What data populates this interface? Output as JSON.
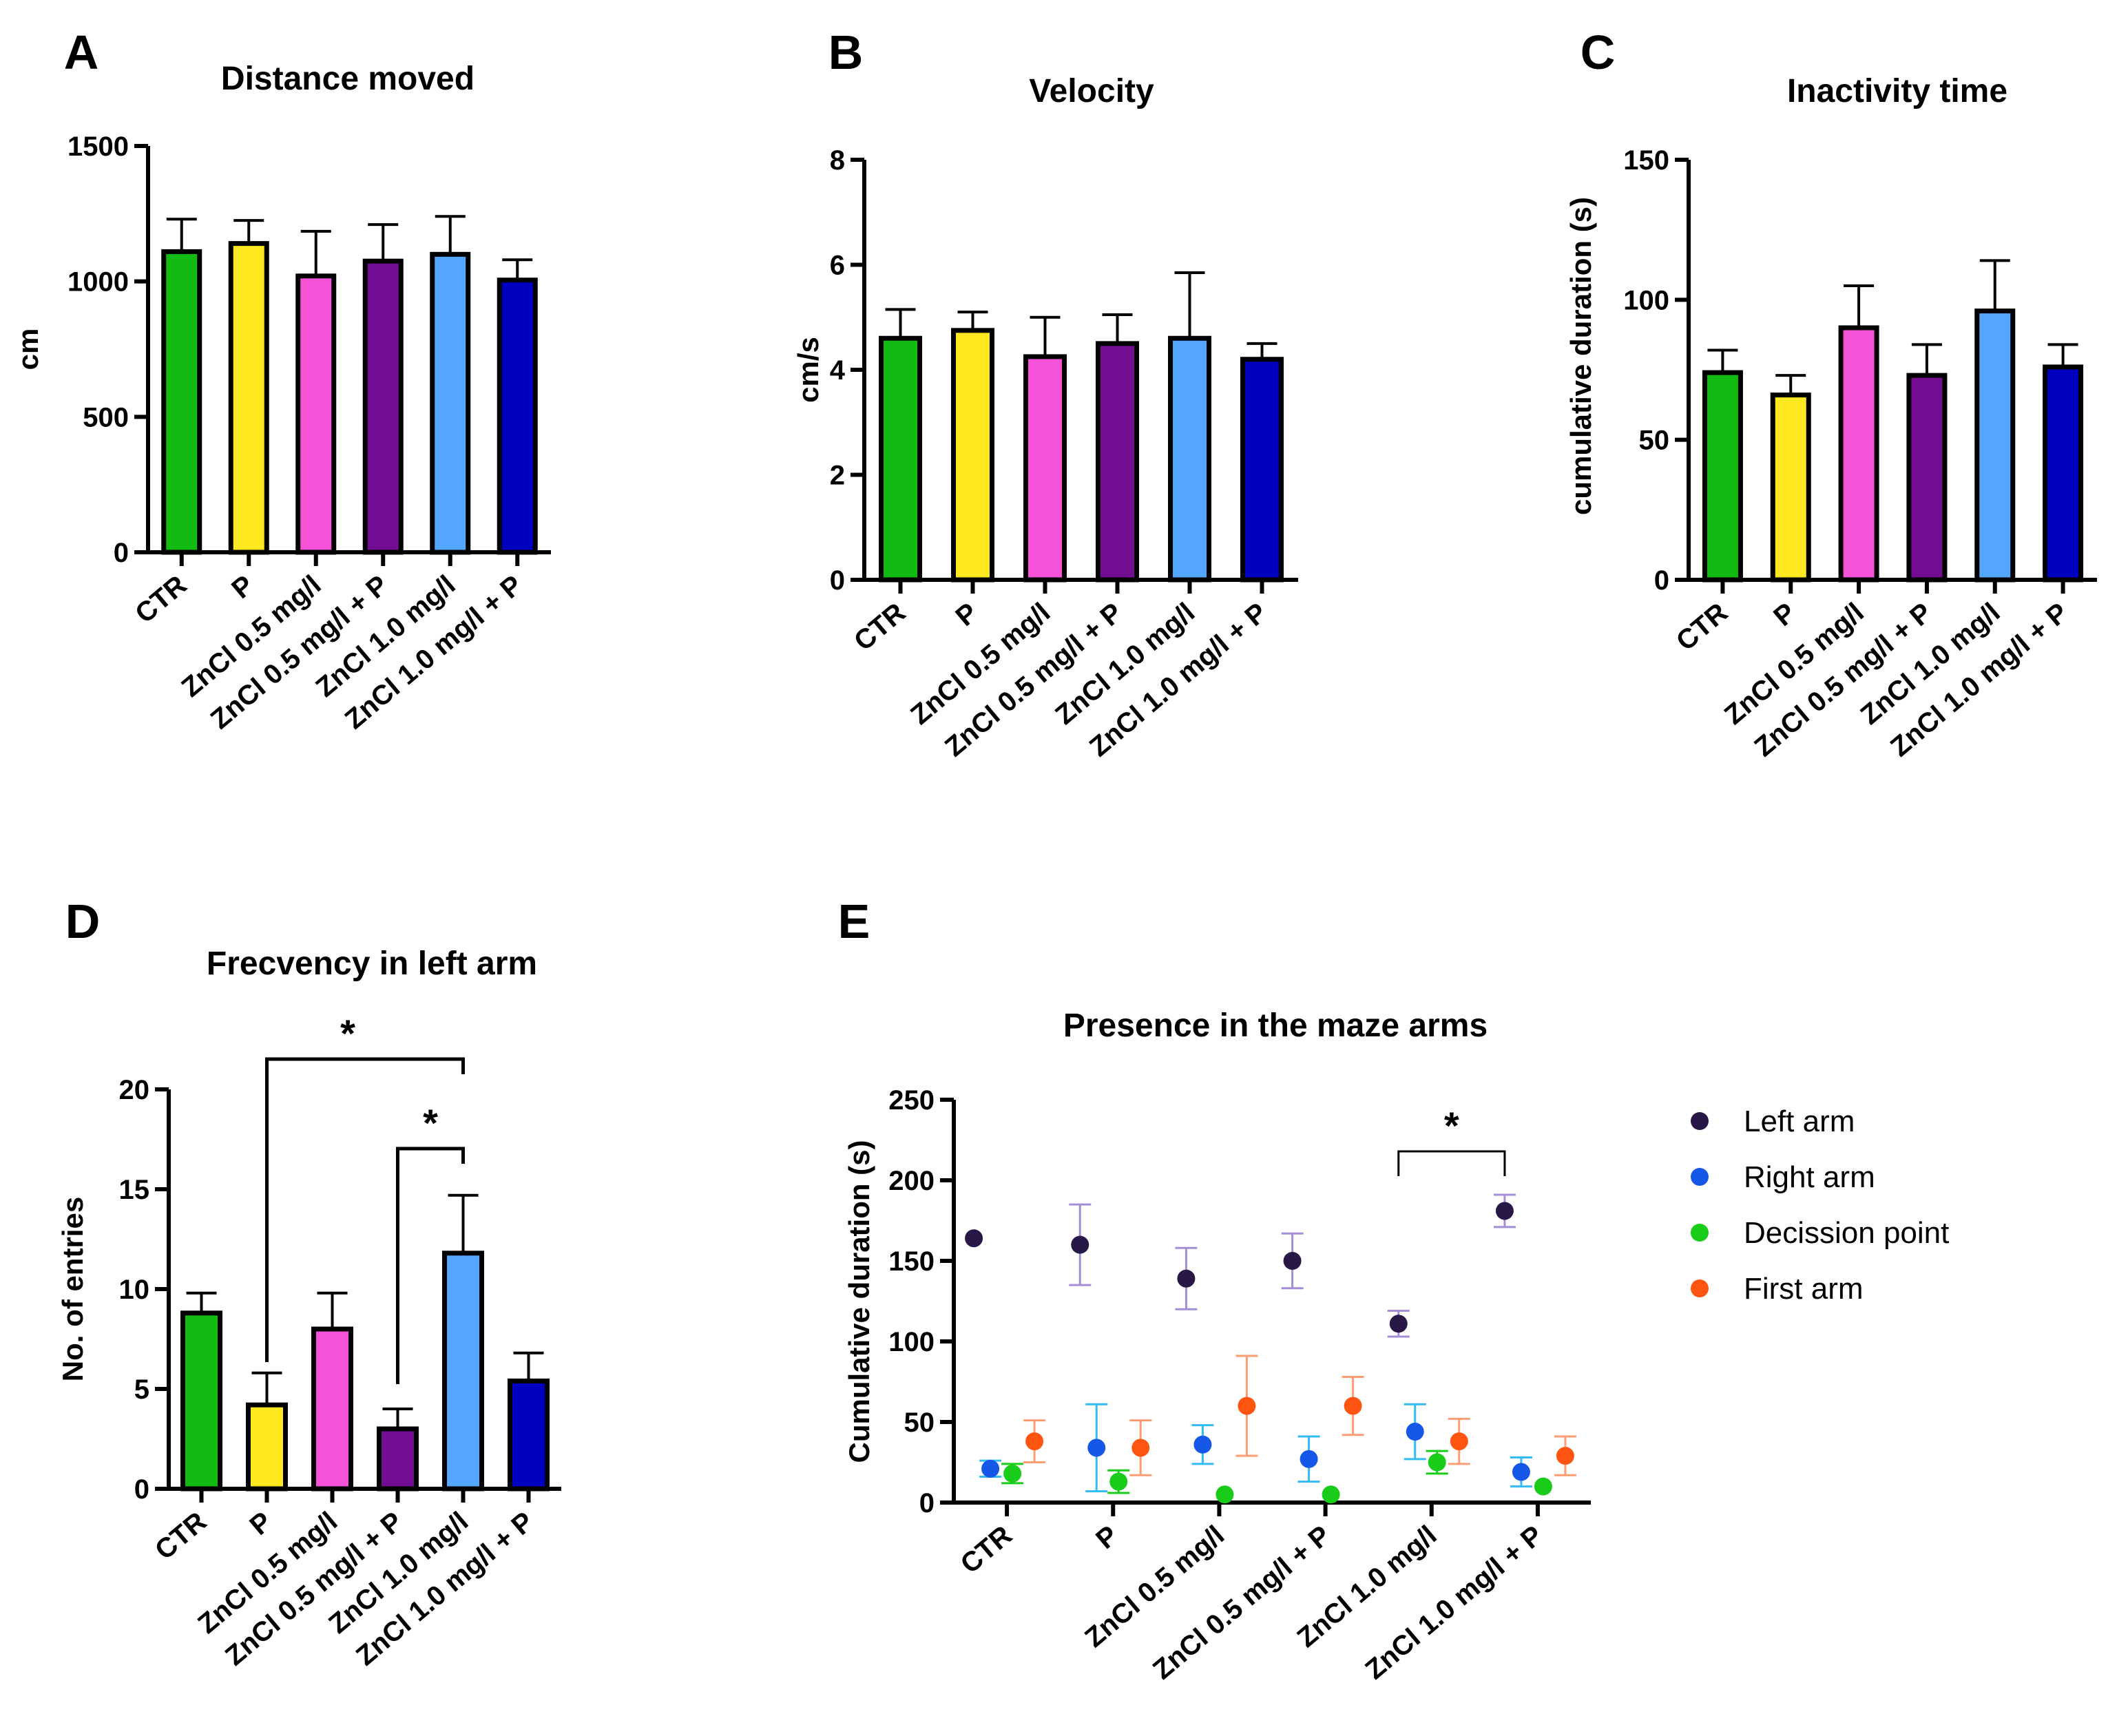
{
  "categories": [
    "CTR",
    "P",
    "ZnCl 0.5 mg/l",
    "ZnCl 0.5 mg/l + P",
    "ZnCl 1.0 mg/l",
    "ZnCl 1.0 mg/l + P"
  ],
  "colors": {
    "green": "#11bb11",
    "yellow": "#ffe820",
    "pink": "#f652d8",
    "purple": "#730d91",
    "light_blue": "#55a6ff",
    "blue": "#0000c0",
    "left_arm": "#281848",
    "right_arm": "#1558e8",
    "decision_point": "#19cc19",
    "first_arm": "#ff5511"
  },
  "chart_data": [
    {
      "id": "A",
      "type": "bar",
      "panel_letter": "A",
      "title": "Distance moved",
      "ylabel": "cm",
      "ylim": [
        0,
        1500
      ],
      "yticks": [
        0,
        500,
        1000,
        1500
      ],
      "categories": [
        "CTR",
        "P",
        "ZnCl 0.5 mg/l",
        "ZnCl 0.5 mg/l + P",
        "ZnCl 1.0 mg/l",
        "ZnCl 1.0 mg/l + P"
      ],
      "values": [
        1110,
        1140,
        1020,
        1075,
        1100,
        1005
      ],
      "errors": [
        120,
        85,
        165,
        135,
        140,
        75
      ]
    },
    {
      "id": "B",
      "type": "bar",
      "panel_letter": "B",
      "title": "Velocity",
      "ylabel": "cm/s",
      "ylim": [
        0,
        8
      ],
      "yticks": [
        0,
        2,
        4,
        6,
        8
      ],
      "categories": [
        "CTR",
        "P",
        "ZnCl 0.5 mg/l",
        "ZnCl 0.5 mg/l + P",
        "ZnCl 1.0 mg/l",
        "ZnCl 1.0 mg/l + P"
      ],
      "values": [
        4.6,
        4.75,
        4.25,
        4.5,
        4.6,
        4.2
      ],
      "errors": [
        0.55,
        0.35,
        0.75,
        0.55,
        1.25,
        0.3
      ]
    },
    {
      "id": "C",
      "type": "bar",
      "panel_letter": "C",
      "title": "Inactivity time",
      "ylabel": "cumulative duration (s)",
      "ylim": [
        0,
        150
      ],
      "yticks": [
        0,
        50,
        100,
        150
      ],
      "categories": [
        "CTR",
        "P",
        "ZnCl 0.5 mg/l",
        "ZnCl 0.5 mg/l + P",
        "ZnCl 1.0 mg/l",
        "ZnCl 1.0 mg/l + P"
      ],
      "values": [
        74,
        66,
        90,
        73,
        96,
        76
      ],
      "errors": [
        8,
        7,
        15,
        11,
        18,
        8
      ]
    },
    {
      "id": "D",
      "type": "bar",
      "panel_letter": "D",
      "title": "Frecvency in left arm",
      "ylabel": "No. of entries",
      "ylim": [
        0,
        20
      ],
      "yticks": [
        0,
        5,
        10,
        15,
        20
      ],
      "categories": [
        "CTR",
        "P",
        "ZnCl 0.5 mg/l",
        "ZnCl 0.5 mg/l + P",
        "ZnCl 1.0 mg/l",
        "ZnCl 1.0 mg/l + P"
      ],
      "values": [
        8.8,
        4.2,
        8.0,
        3.0,
        11.8,
        5.4
      ],
      "errors": [
        1.0,
        1.6,
        1.8,
        1.0,
        2.9,
        1.4
      ],
      "significance": [
        {
          "from": 1,
          "to": 4,
          "label": "*"
        },
        {
          "from": 3,
          "to": 4,
          "label": "*"
        }
      ]
    },
    {
      "id": "E",
      "type": "scatter",
      "panel_letter": "E",
      "title": "Presence in the maze arms",
      "ylabel": "Cumulative duration (s)",
      "ylim": [
        0,
        250
      ],
      "yticks": [
        0,
        50,
        100,
        150,
        200,
        250
      ],
      "categories": [
        "CTR",
        "P",
        "ZnCl 0.5 mg/l",
        "ZnCl 0.5 mg/l + P",
        "ZnCl 1.0 mg/l",
        "ZnCl 1.0 mg/l + P"
      ],
      "series": [
        {
          "name": "Left arm",
          "values": [
            164,
            160,
            139,
            150,
            111,
            181
          ],
          "errors": [
            0,
            25,
            19,
            17,
            8,
            10
          ]
        },
        {
          "name": "Right arm",
          "values": [
            21,
            34,
            36,
            27,
            44,
            19
          ],
          "errors": [
            5,
            27,
            12,
            14,
            17,
            9
          ]
        },
        {
          "name": "Decission point",
          "values": [
            18,
            13,
            5,
            5,
            25,
            10
          ],
          "errors": [
            6,
            7,
            0,
            0,
            7,
            0
          ]
        },
        {
          "name": "First arm",
          "values": [
            38,
            34,
            60,
            60,
            38,
            29
          ],
          "errors": [
            13,
            17,
            31,
            18,
            14,
            12
          ]
        }
      ],
      "significance": [
        {
          "from": 4,
          "to": 5,
          "label": "*"
        }
      ]
    }
  ]
}
